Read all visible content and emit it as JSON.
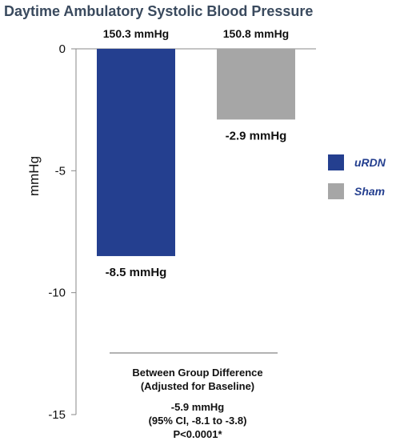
{
  "chart_data": {
    "type": "bar",
    "title": "Daytime Ambulatory Systolic Blood Pressure",
    "xlabel": "",
    "ylabel": "mmHg",
    "ylim": [
      -15,
      0
    ],
    "yticks": [
      "0",
      "-5",
      "-10",
      "-15"
    ],
    "grid": false,
    "legend_position": "right",
    "categories": [
      "uRDN",
      "Sham"
    ],
    "values": [
      -8.5,
      -2.9
    ],
    "colors": [
      "#243f8f",
      "#a6a6a6"
    ],
    "baseline_labels": [
      "150.3 mmHg",
      "150.8 mmHg"
    ],
    "data_labels": [
      "-8.5 mmHg",
      "-2.9 mmHg"
    ],
    "legend": [
      {
        "label": "uRDN",
        "color": "#243f8f"
      },
      {
        "label": "Sham",
        "color": "#a6a6a6"
      }
    ],
    "annotation": {
      "heading1": "Between Group Difference",
      "heading2": "(Adjusted for Baseline)",
      "line1": "-5.9 mmHg",
      "line2": "(95% CI, -8.1 to -3.8)",
      "line3": "P<0.0001*"
    }
  }
}
